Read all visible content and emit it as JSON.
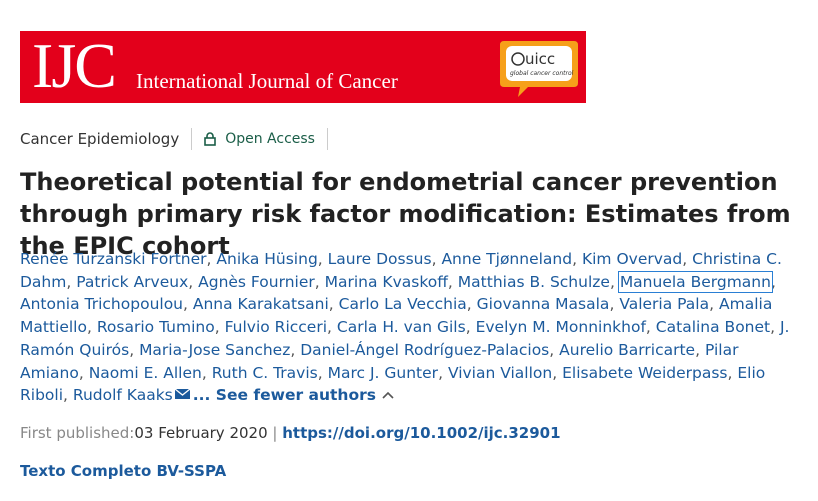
{
  "banner": {
    "abbr": "IJC",
    "journal": "International Journal of Cancer",
    "partner": "uicc",
    "partner_tagline": "global cancer control"
  },
  "section": "Cancer Epidemiology",
  "access": "Open Access",
  "title": "Theoretical potential for endometrial cancer prevention through primary risk factor modification: Estimates from the EPIC cohort",
  "authors": {
    "separator": ",",
    "names": [
      "Renée Turzanski Fortner",
      "Anika Hüsing",
      "Laure Dossus",
      "Anne Tjønneland",
      "Kim Overvad",
      "Christina C. Dahm",
      "Patrick Arveux",
      "Agnès Fournier",
      "Marina Kvaskoff",
      "Matthias B. Schulze",
      "Manuela Bergmann",
      "Antonia Trichopoulou",
      "Anna Karakatsani",
      "Carlo La Vecchia",
      "Giovanna Masala",
      "Valeria Pala",
      "Amalia Mattiello",
      "Rosario Tumino",
      "Fulvio Ricceri",
      "Carla H. van Gils",
      "Evelyn M. Monninkhof",
      "Catalina Bonet",
      "J. Ramón Quirós",
      "Maria-Jose Sanchez",
      "Daniel-Ángel Rodríguez-Palacios",
      "Aurelio Barricarte",
      "Pilar Amiano",
      "Naomi E. Allen",
      "Ruth C. Travis",
      "Marc J. Gunter",
      "Vivian Viallon",
      "Elisabete Weiderpass",
      "Elio Riboli",
      "Rudolf Kaaks"
    ],
    "toggle": "... See fewer authors"
  },
  "published": {
    "label": "First published:",
    "date": "03 February 2020",
    "divider": "|",
    "doi": "https://doi.org/10.1002/ijc.32901"
  },
  "fulltext": "Texto Completo BV-SSPA"
}
